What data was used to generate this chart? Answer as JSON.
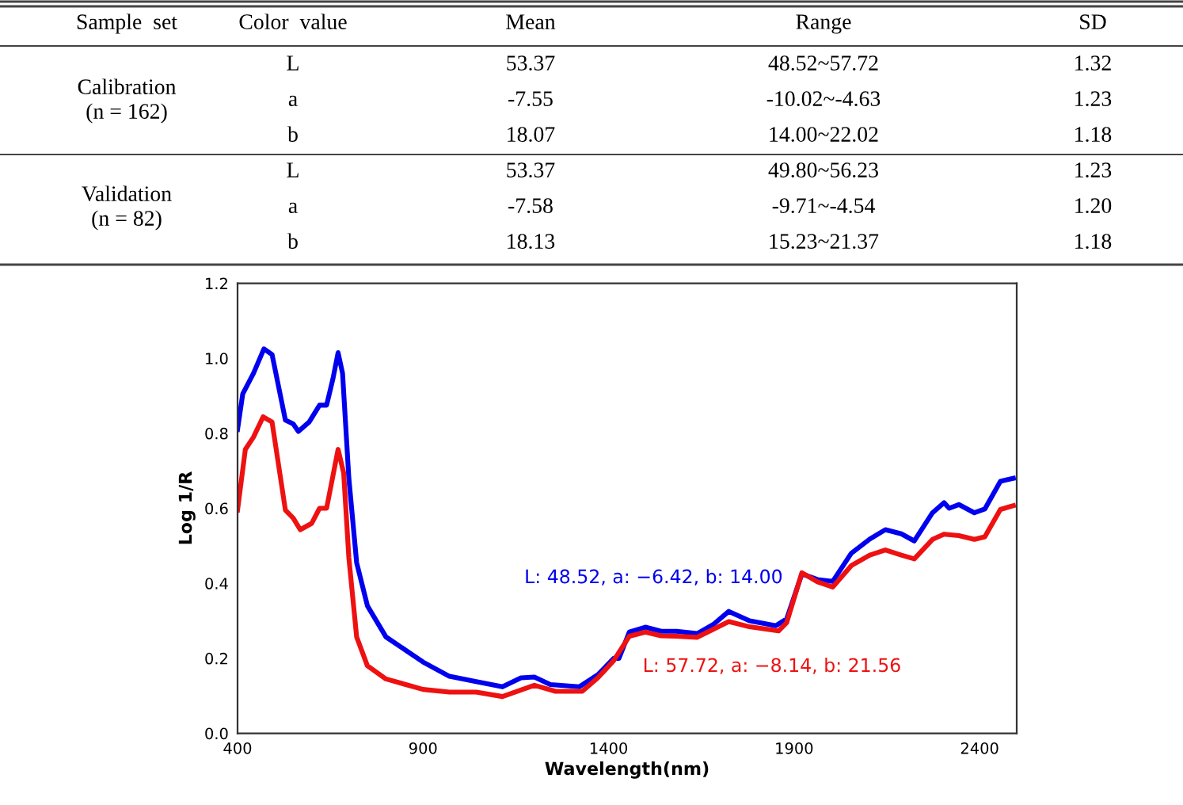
{
  "chart_data": [
    {
      "type": "other",
      "categories": [
        "Sample  set",
        "Color  value",
        "Mean",
        "Range",
        "SD"
      ],
      "y_categories": [
        "Calibration\n(n = 162)",
        "Validation\n(n = 82)"
      ],
      "cell_labels": [
        [
          "L",
          "53.37",
          "48.52~57.72",
          "1.32"
        ],
        [
          "a",
          "-7.55",
          "-10.02~-4.63",
          "1.23"
        ],
        [
          "b",
          "18.07",
          "14.00~22.02",
          "1.18"
        ],
        [
          "L",
          "53.37",
          "49.80~56.23",
          "1.23"
        ],
        [
          "a",
          "-7.58",
          "-9.71~-4.54",
          "1.20"
        ],
        [
          "b",
          "18.13",
          "15.23~21.37",
          "1.18"
        ]
      ]
    },
    {
      "type": "line",
      "xlabel": "Wavelength(nm)",
      "ylabel": "Log 1/R",
      "xlim": [
        400,
        2500
      ],
      "xticks": [
        400,
        900,
        1400,
        1900,
        2400
      ],
      "ylim": [
        0,
        1.2
      ],
      "yticks": [
        {
          "value": 0,
          "label": "0.0"
        },
        {
          "value": 0.2,
          "label": "0.2"
        },
        {
          "value": 0.4,
          "label": "0.4"
        },
        {
          "value": 0.6,
          "label": "0.6"
        },
        {
          "value": 0.8,
          "label": "0.8"
        },
        {
          "value": 1.0,
          "label": "1.0"
        },
        {
          "value": 1.2,
          "label": "1.2"
        }
      ],
      "grid": false,
      "legend": false,
      "annotations": [
        "L: 48.52, a: −6.42, b: 14.00",
        "L: 57.72, a: −8.14, b: 21.56"
      ],
      "series": [
        {
          "color": "#0000ee",
          "x": [
            400,
            414,
            443,
            471,
            493,
            529,
            550,
            564,
            593,
            621,
            640,
            657,
            671,
            683,
            700,
            721,
            750,
            800,
            900,
            971,
            1043,
            1114,
            1164,
            1200,
            1243,
            1321,
            1371,
            1414,
            1428,
            1456,
            1499,
            1542,
            1583,
            1639,
            1682,
            1724,
            1780,
            1851,
            1880,
            1921,
            1963,
            2004,
            2054,
            2104,
            2146,
            2189,
            2224,
            2273,
            2304,
            2318,
            2344,
            2386,
            2414,
            2456,
            2491
          ],
          "values": [
            0.81,
            0.905,
            0.96,
            1.025,
            1.01,
            0.835,
            0.825,
            0.805,
            0.83,
            0.875,
            0.875,
            0.945,
            1.015,
            0.96,
            0.68,
            0.455,
            0.34,
            0.257,
            0.19,
            0.152,
            0.138,
            0.124,
            0.148,
            0.15,
            0.13,
            0.124,
            0.156,
            0.2,
            0.2,
            0.27,
            0.283,
            0.272,
            0.272,
            0.266,
            0.29,
            0.325,
            0.3,
            0.287,
            0.305,
            0.425,
            0.41,
            0.405,
            0.48,
            0.518,
            0.543,
            0.532,
            0.513,
            0.588,
            0.615,
            0.6,
            0.61,
            0.588,
            0.598,
            0.672,
            0.68
          ]
        },
        {
          "color": "#ee1111",
          "x": [
            400,
            421,
            443,
            469,
            493,
            529,
            550,
            569,
            600,
            621,
            640,
            671,
            686,
            700,
            721,
            750,
            800,
            900,
            971,
            1043,
            1114,
            1200,
            1257,
            1329,
            1371,
            1414,
            1456,
            1499,
            1542,
            1583,
            1639,
            1724,
            1780,
            1858,
            1880,
            1921,
            1963,
            2004,
            2054,
            2104,
            2146,
            2189,
            2224,
            2273,
            2304,
            2344,
            2386,
            2414,
            2456,
            2491
          ],
          "values": [
            0.595,
            0.757,
            0.79,
            0.844,
            0.83,
            0.595,
            0.574,
            0.543,
            0.56,
            0.6,
            0.6,
            0.757,
            0.694,
            0.468,
            0.257,
            0.18,
            0.145,
            0.117,
            0.11,
            0.11,
            0.098,
            0.128,
            0.112,
            0.112,
            0.148,
            0.194,
            0.259,
            0.27,
            0.26,
            0.259,
            0.256,
            0.298,
            0.284,
            0.273,
            0.295,
            0.428,
            0.404,
            0.39,
            0.447,
            0.475,
            0.489,
            0.475,
            0.465,
            0.517,
            0.531,
            0.527,
            0.517,
            0.524,
            0.597,
            0.607
          ]
        }
      ]
    }
  ]
}
